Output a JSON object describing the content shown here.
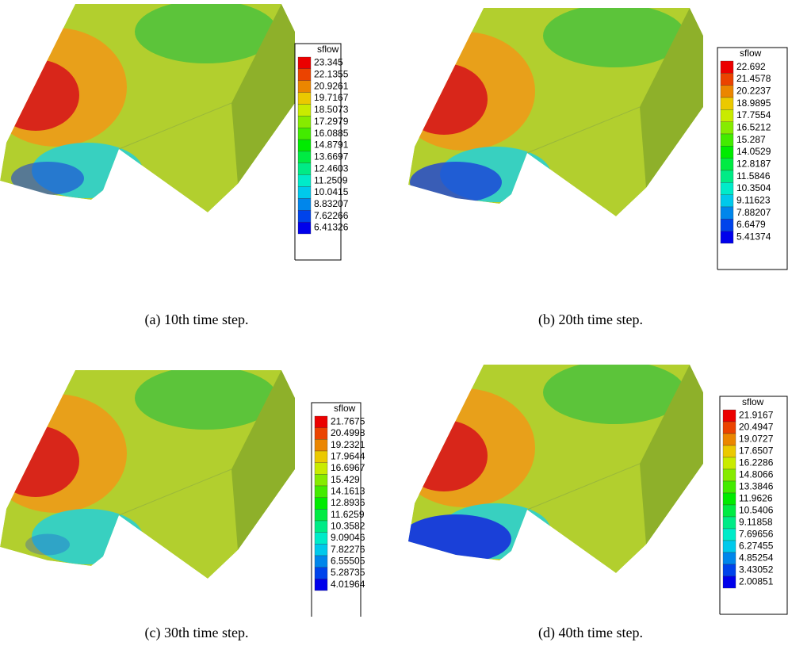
{
  "panels": [
    {
      "legend": {
        "title": "sflow",
        "values": [
          "23.345",
          "22.1355",
          "20.9261",
          "19.7167",
          "18.5073",
          "17.2979",
          "16.0885",
          "14.8791",
          "13.6697",
          "12.4603",
          "11.2509",
          "10.0415",
          "8.83207",
          "7.62266",
          "6.41326"
        ]
      },
      "caption": "(a) 10th time step."
    },
    {
      "legend": {
        "title": "sflow",
        "values": [
          "22.692",
          "21.4578",
          "20.2237",
          "18.9895",
          "17.7554",
          "16.5212",
          "15.287",
          "14.0529",
          "12.8187",
          "11.5846",
          "10.3504",
          "9.11623",
          "7.88207",
          "6.6479",
          "5.41374"
        ]
      },
      "caption": "(b) 20th time step."
    },
    {
      "legend": {
        "title": "sflow",
        "values": [
          "21.7675",
          "20.4998",
          "19.2321",
          "17.9644",
          "16.6967",
          "15.429",
          "14.1613",
          "12.8936",
          "11.6259",
          "10.3582",
          "9.09046",
          "7.82276",
          "6.55505",
          "5.28735",
          "4.01964"
        ]
      },
      "caption": "(c) 30th time step."
    },
    {
      "legend": {
        "title": "sflow",
        "values": [
          "21.9167",
          "20.4947",
          "19.0727",
          "17.6507",
          "16.2286",
          "14.8066",
          "13.3846",
          "11.9626",
          "10.5406",
          "9.11858",
          "7.69656",
          "6.27455",
          "4.85254",
          "3.43052",
          "2.00851"
        ]
      },
      "caption": "(d) 40th time step."
    }
  ]
}
